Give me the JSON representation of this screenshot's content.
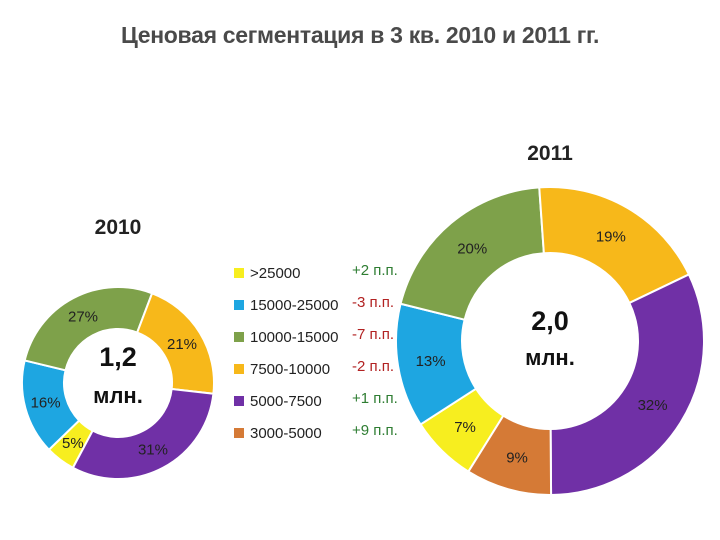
{
  "title": "Ценовая сегментация в 3 кв. 2010 и 2011 гг.",
  "colors": {
    ">25000": "#f7ee1f",
    "15000-25000": "#1ea6e1",
    "10000-15000": "#7ea14a",
    "7500-10000": "#f7b81a",
    "5000-7500": "#7030a6",
    "3000-5000": "#d57a36",
    "positive_delta": "#2e7d32",
    "negative_delta": "#b22222"
  },
  "chart_data": [
    {
      "type": "pie",
      "subtype": "donut",
      "title": "2010",
      "center_value": "1,2",
      "center_unit": "млн.",
      "categories": [
        ">25000",
        "15000-25000",
        "10000-15000",
        "7500-10000",
        "5000-7500",
        "3000-5000"
      ],
      "values": [
        5,
        16,
        27,
        21,
        31,
        0
      ],
      "labels": [
        "5%",
        "16%",
        "27%",
        "21%",
        "31%",
        ""
      ]
    },
    {
      "type": "pie",
      "subtype": "donut",
      "title": "2011",
      "center_value": "2,0",
      "center_unit": "млн.",
      "categories": [
        ">25000",
        "15000-25000",
        "10000-15000",
        "7500-10000",
        "5000-7500",
        "3000-5000"
      ],
      "values": [
        7,
        13,
        20,
        19,
        32,
        9
      ],
      "labels": [
        "7%",
        "13%",
        "20%",
        "19%",
        "32%",
        "9%"
      ]
    }
  ],
  "legend": [
    {
      "label": ">25000",
      "delta": "+2 п.п."
    },
    {
      "label": "15000-25000",
      "delta": "-3 п.п."
    },
    {
      "label": "10000-15000",
      "delta": "-7 п.п."
    },
    {
      "label": "7500-10000",
      "delta": "-2 п.п."
    },
    {
      "label": "5000-7500",
      "delta": "+1 п.п."
    },
    {
      "label": "3000-5000",
      "delta": "+9 п.п."
    }
  ]
}
